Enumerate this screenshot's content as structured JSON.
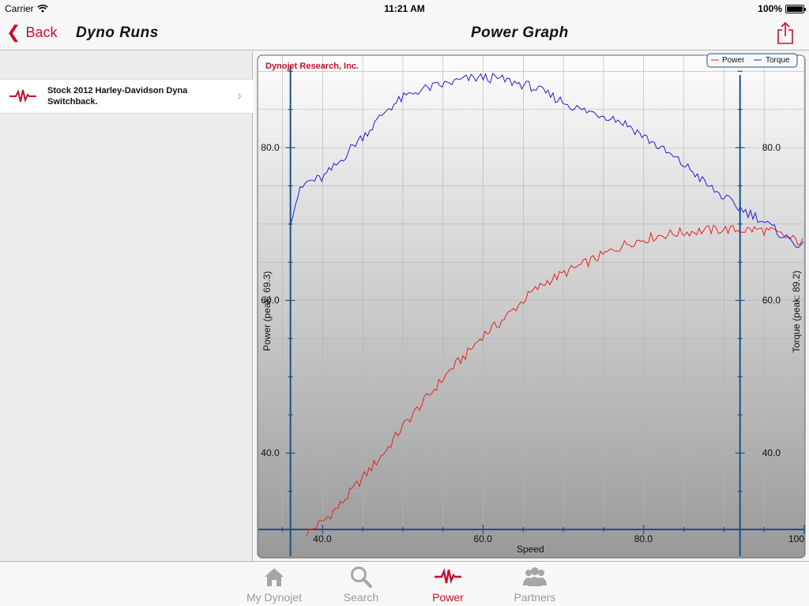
{
  "status_bar": {
    "carrier": "Carrier",
    "time": "11:21 AM",
    "battery": "100%"
  },
  "nav": {
    "back_label": "Back",
    "left_title": "Dyno Runs",
    "main_title": "Power Graph"
  },
  "sidebar": {
    "items": [
      {
        "label": "Stock 2012 Harley-Davidson Dyna Switchback."
      }
    ]
  },
  "graph": {
    "brand": "Dynojet Research, Inc.",
    "left_axis_label": "Power (peak: 69.3)",
    "right_axis_label": "Torque (peak: 89.2)",
    "x_axis_label": "Speed",
    "left_ticks": [
      "80.0",
      "60.0",
      "40.0"
    ],
    "right_ticks": [
      "80.0",
      "60.0",
      "40.0"
    ],
    "x_ticks": [
      "40.0",
      "60.0",
      "80.0",
      "100"
    ],
    "legend": {
      "power": "Power",
      "torque": "Torque"
    },
    "colors": {
      "power": "#e8201f",
      "torque": "#1f1fd8",
      "axis": "#1e4f86"
    }
  },
  "chart_data": {
    "type": "line",
    "title": "",
    "xlabel": "Speed",
    "ylabel": "Power (peak: 69.3)",
    "y2label": "Torque (peak: 89.2)",
    "xlim": [
      32,
      100
    ],
    "ylim": [
      30,
      92
    ],
    "legend_position": "top-right",
    "grid": true,
    "series": [
      {
        "name": "Power",
        "x": [
          38,
          40,
          42,
          44,
          46,
          48,
          50,
          52,
          54,
          56,
          58,
          60,
          62,
          64,
          66,
          68,
          70,
          72,
          74,
          76,
          78,
          80,
          82,
          84,
          86,
          88,
          90,
          92,
          94,
          96,
          98,
          100
        ],
        "values": [
          29.5,
          31,
          33,
          35.5,
          38,
          40.5,
          43.5,
          46,
          48.5,
          51,
          53,
          55.5,
          57,
          59,
          61,
          62.5,
          63.5,
          64.5,
          65.5,
          66.5,
          67.5,
          68,
          68.5,
          68.8,
          69,
          69.2,
          69.3,
          69.2,
          69.3,
          69,
          68.2,
          67.5
        ]
      },
      {
        "name": "Torque",
        "x": [
          36,
          37,
          38,
          40,
          42,
          44,
          46,
          48,
          50,
          52,
          54,
          56,
          58,
          60,
          62,
          64,
          66,
          68,
          70,
          72,
          74,
          76,
          78,
          80,
          82,
          84,
          86,
          88,
          90,
          92,
          94,
          96,
          98,
          100
        ],
        "values": [
          70.5,
          74,
          75.5,
          76,
          78,
          80.5,
          82.5,
          85,
          86.5,
          87.5,
          88,
          88.5,
          89,
          89.2,
          89,
          88.5,
          88,
          87,
          86,
          85,
          84.5,
          84,
          83,
          81.5,
          80,
          78.5,
          77,
          75,
          73.5,
          72,
          71,
          69.5,
          68,
          67
        ]
      }
    ]
  },
  "tabs": [
    {
      "label": "My Dynojet",
      "icon": "house-icon",
      "active": false
    },
    {
      "label": "Search",
      "icon": "magnifier-icon",
      "active": false
    },
    {
      "label": "Power",
      "icon": "pulse-icon",
      "active": true
    },
    {
      "label": "Partners",
      "icon": "people-icon",
      "active": false
    }
  ]
}
